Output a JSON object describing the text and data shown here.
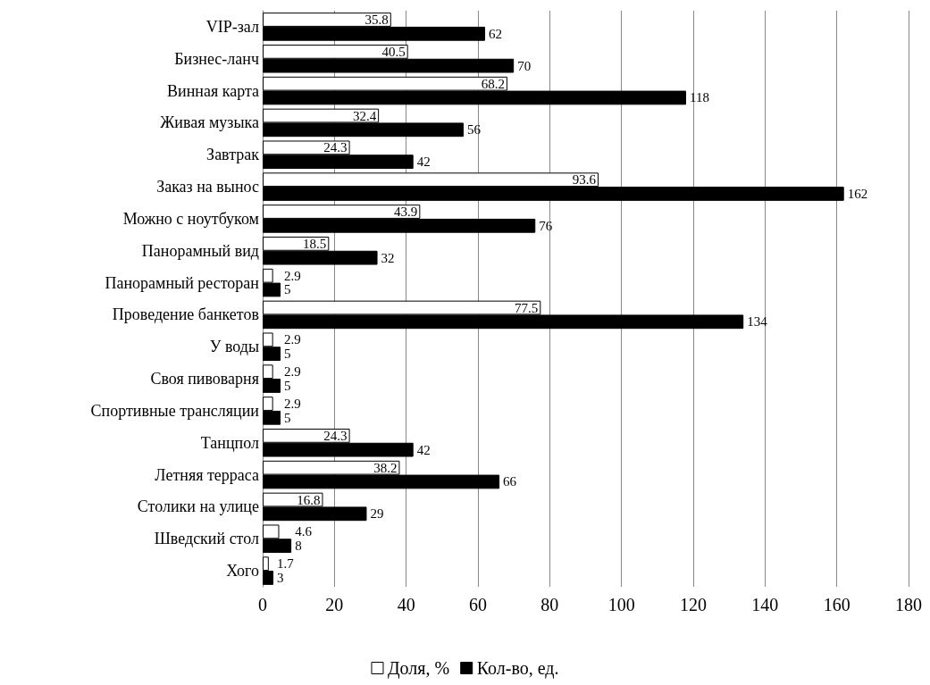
{
  "chart_data": {
    "type": "bar",
    "orientation": "horizontal",
    "categories": [
      "VIP-зал",
      "Бизнес-ланч",
      "Винная карта",
      "Живая музыка",
      "Завтрак",
      "Заказ на вынос",
      "Можно с ноутбуком",
      "Панорамный вид",
      "Панорамный ресторан",
      "Проведение банкетов",
      "У воды",
      "Своя пивоварня",
      "Спортивные трансляции",
      "Танцпол",
      "Летняя терраса",
      "Столики на улице",
      "Шведский стол",
      "Хого"
    ],
    "series": [
      {
        "name": "Доля, %",
        "color": "#ffffff",
        "values": [
          35.8,
          40.5,
          68.2,
          32.4,
          24.3,
          93.6,
          43.9,
          18.5,
          2.9,
          77.5,
          2.9,
          2.9,
          2.9,
          24.3,
          38.2,
          16.8,
          4.6,
          1.7
        ]
      },
      {
        "name": "Кол-во, ед.",
        "color": "#000000",
        "values": [
          62,
          70,
          118,
          56,
          42,
          162,
          76,
          32,
          5,
          134,
          5,
          5,
          5,
          42,
          66,
          29,
          8,
          3
        ]
      }
    ],
    "xlim": [
      0,
      180
    ],
    "xticks": [
      0,
      20,
      40,
      60,
      80,
      100,
      120,
      140,
      160,
      180
    ],
    "grid": "x",
    "legend": "bottom",
    "data_labels": true
  }
}
